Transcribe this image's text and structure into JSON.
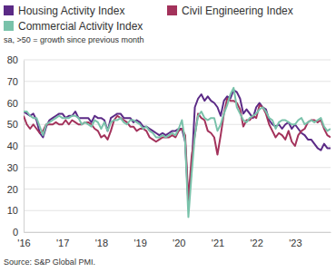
{
  "chart_data": {
    "type": "line",
    "subtitle": "sa, >50 = growth since previous month",
    "source": "Source: S&P Global PMI.",
    "legend": "top",
    "grid": true,
    "categories": [
      "'16",
      null,
      null,
      null,
      null,
      null,
      null,
      null,
      null,
      null,
      null,
      null,
      "'17",
      null,
      null,
      null,
      null,
      null,
      null,
      null,
      null,
      null,
      null,
      null,
      "'18",
      null,
      null,
      null,
      null,
      null,
      null,
      null,
      null,
      null,
      null,
      null,
      "'19",
      null,
      null,
      null,
      null,
      null,
      null,
      null,
      null,
      null,
      null,
      null,
      "'20",
      null,
      null,
      null,
      null,
      null,
      null,
      null,
      null,
      null,
      null,
      null,
      "'21",
      null,
      null,
      null,
      null,
      null,
      null,
      null,
      null,
      null,
      null,
      null,
      "'22",
      null,
      null,
      null,
      null,
      null,
      null,
      null,
      null,
      null,
      null,
      null,
      "'23",
      null,
      null,
      null,
      null,
      null,
      null,
      null,
      null,
      null,
      null,
      null
    ],
    "ylim": [
      0,
      80
    ],
    "yticks": [
      0,
      10,
      20,
      30,
      40,
      50,
      60,
      70,
      80
    ],
    "series": [
      {
        "name": "Housing Activity Index",
        "color": "#5b2a86",
        "values": [
          56,
          55,
          54,
          55,
          52,
          46,
          44,
          49,
          52,
          53,
          54,
          55,
          55,
          53,
          54,
          54,
          56,
          53,
          53,
          53,
          53,
          51,
          54,
          53,
          53,
          52,
          47,
          53,
          54,
          55,
          55,
          53,
          53,
          53,
          51,
          52,
          51,
          49,
          49,
          48,
          47,
          46,
          45,
          46,
          45,
          46,
          47,
          47,
          48,
          48,
          42,
          13,
          30,
          58,
          62,
          64,
          61,
          63,
          61,
          60,
          58,
          54,
          61,
          63,
          62,
          66,
          65,
          62,
          55,
          57,
          55,
          53,
          58,
          60,
          58,
          57,
          52,
          50,
          49,
          50,
          48,
          50,
          51,
          48,
          50,
          48,
          46,
          45,
          43,
          43,
          41,
          39,
          38,
          41,
          39,
          39
        ]
      },
      {
        "name": "Civil Engineering Index",
        "color": "#a3325b",
        "values": [
          54,
          50,
          48,
          50,
          48,
          46,
          47,
          50,
          50,
          50,
          51,
          50,
          50,
          52,
          50,
          52,
          51,
          50,
          50,
          51,
          51,
          50,
          48,
          47,
          44,
          45,
          43,
          47,
          52,
          54,
          53,
          52,
          51,
          49,
          49,
          47,
          48,
          48,
          47,
          44,
          43,
          42,
          43,
          44,
          44,
          44,
          45,
          44,
          47,
          48,
          45,
          15,
          35,
          45,
          55,
          53,
          52,
          47,
          46,
          44,
          36,
          45,
          55,
          62,
          61,
          61,
          60,
          57,
          49,
          52,
          52,
          54,
          53,
          59,
          58,
          55,
          50,
          47,
          44,
          46,
          45,
          43,
          47,
          42,
          40,
          45,
          47,
          48,
          51,
          52,
          52,
          51,
          52,
          48,
          45,
          44
        ]
      },
      {
        "name": "Commercial Activity Index",
        "color": "#79c2aa",
        "values": [
          56,
          56,
          54,
          53,
          53,
          49,
          45,
          50,
          51,
          52,
          53,
          54,
          53,
          53,
          53,
          54,
          54,
          53,
          50,
          51,
          50,
          49,
          52,
          51,
          48,
          51,
          47,
          51,
          52,
          52,
          53,
          51,
          50,
          52,
          52,
          51,
          50,
          48,
          49,
          47,
          46,
          44,
          44,
          45,
          44,
          45,
          46,
          45,
          48,
          52,
          42,
          7,
          27,
          45,
          54,
          56,
          53,
          52,
          53,
          53,
          47,
          50,
          55,
          59,
          64,
          67,
          58,
          55,
          52,
          51,
          53,
          54,
          55,
          57,
          58,
          56,
          53,
          52,
          48,
          51,
          52,
          52,
          51,
          50,
          50,
          52,
          53,
          50,
          51,
          52,
          51,
          52,
          53,
          49,
          47,
          48
        ]
      }
    ]
  }
}
